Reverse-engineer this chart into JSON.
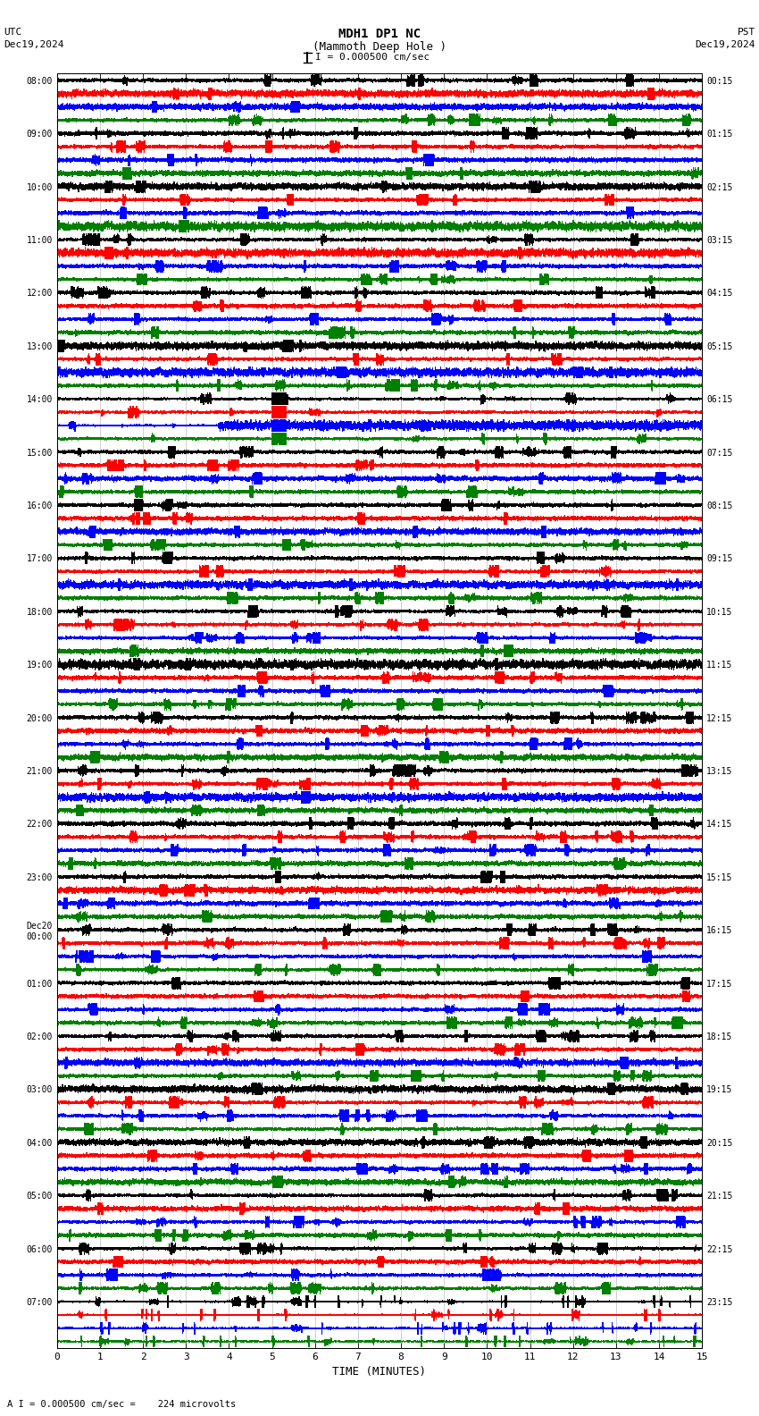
{
  "title_line1": "MDH1 DP1 NC",
  "title_line2": "(Mammoth Deep Hole )",
  "scale_label": "I = 0.000500 cm/sec",
  "utc_label": "UTC",
  "pst_label": "PST",
  "date_left": "Dec19,2024",
  "date_right": "Dec19,2024",
  "footer_label": "A I = 0.000500 cm/sec =    224 microvolts",
  "xlabel": "TIME (MINUTES)",
  "left_times": [
    "08:00",
    "09:00",
    "10:00",
    "11:00",
    "12:00",
    "13:00",
    "14:00",
    "15:00",
    "16:00",
    "17:00",
    "18:00",
    "19:00",
    "20:00",
    "21:00",
    "22:00",
    "23:00",
    "Dec20\n00:00",
    "01:00",
    "02:00",
    "03:00",
    "04:00",
    "05:00",
    "06:00",
    "07:00"
  ],
  "right_times": [
    "00:15",
    "01:15",
    "02:15",
    "03:15",
    "04:15",
    "05:15",
    "06:15",
    "07:15",
    "08:15",
    "09:15",
    "10:15",
    "11:15",
    "12:15",
    "13:15",
    "14:15",
    "15:15",
    "16:15",
    "17:15",
    "18:15",
    "19:15",
    "20:15",
    "21:15",
    "22:15",
    "23:15"
  ],
  "n_rows": 24,
  "n_channels": 4,
  "colors": [
    "black",
    "red",
    "blue",
    "green"
  ],
  "bg_color": "white",
  "xlim": [
    0,
    15
  ],
  "xticks": [
    0,
    1,
    2,
    3,
    4,
    5,
    6,
    7,
    8,
    9,
    10,
    11,
    12,
    13,
    14,
    15
  ],
  "seed": 12345,
  "n_pts": 9000,
  "noise_std": 0.3,
  "amp_fill": 0.42,
  "special_row_14_ch": 1,
  "special_row_23_all": true,
  "vgrid_color": "#888888",
  "vgrid_lw": 0.4,
  "trace_lw": 0.25
}
